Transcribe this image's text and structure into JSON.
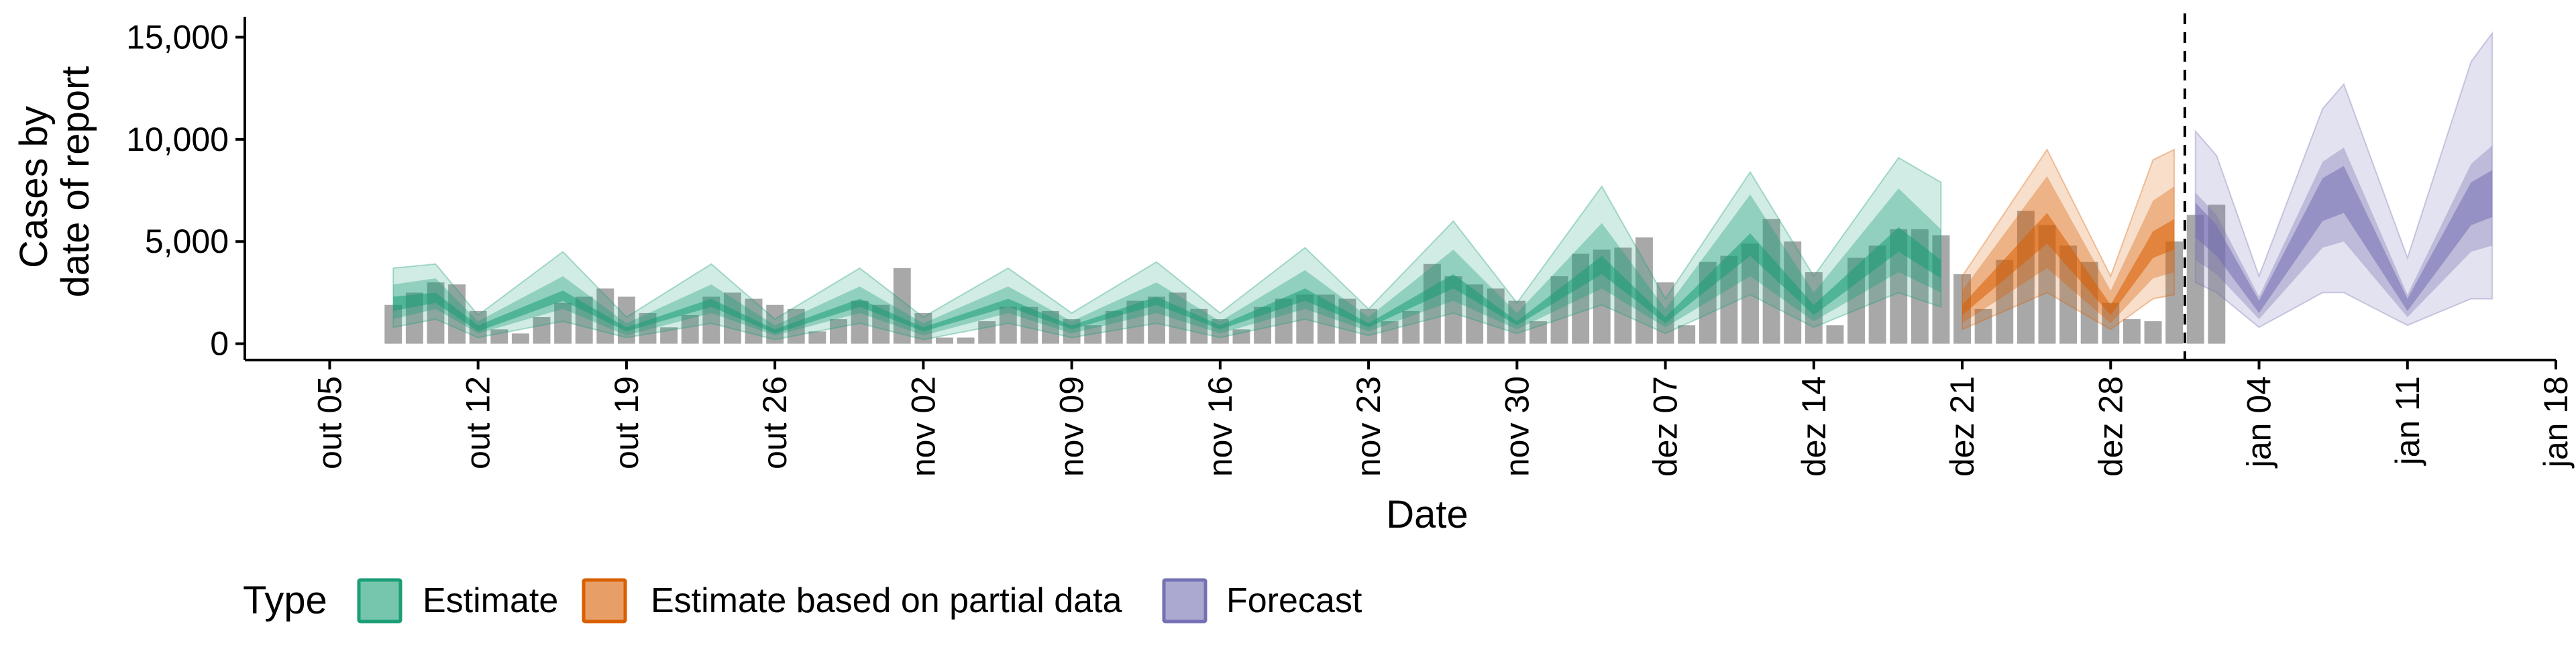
{
  "colors": {
    "estimate": "#1b9e77",
    "partial": "#d95f02",
    "forecast": "#7570b3",
    "bars": "#a8a8a8",
    "vline": "#000000"
  },
  "legend": {
    "title": "Type",
    "items": [
      {
        "label": "Estimate",
        "color": "#1b9e77"
      },
      {
        "label": "Estimate based on partial data",
        "color": "#d95f02"
      },
      {
        "label": "Forecast",
        "color": "#7570b3"
      }
    ]
  },
  "chart_data": {
    "type": "area",
    "title": "",
    "xlabel": "Date",
    "ylabel_lines": [
      "Cases by",
      "date of report"
    ],
    "ylim": [
      -800,
      16000
    ],
    "yticks": [
      0,
      5000,
      10000,
      15000
    ],
    "ytick_labels": [
      "0",
      "5,000",
      "10,000",
      "15,000"
    ],
    "xlim": [
      "2020-10-01",
      "2021-01-18"
    ],
    "xticks": [
      "2020-10-05",
      "2020-10-12",
      "2020-10-19",
      "2020-10-26",
      "2020-11-02",
      "2020-11-09",
      "2020-11-16",
      "2020-11-23",
      "2020-11-30",
      "2020-12-07",
      "2020-12-14",
      "2020-12-21",
      "2020-12-28",
      "2021-01-04",
      "2021-01-11",
      "2021-01-18"
    ],
    "xtick_labels": [
      "out 05",
      "out 12",
      "out 19",
      "out 26",
      "nov 02",
      "nov 09",
      "nov 16",
      "nov 23",
      "nov 30",
      "dez 07",
      "dez 14",
      "dez 21",
      "dez 28",
      "jan 04",
      "jan 11",
      "jan 18"
    ],
    "forecast_start": "2020-12-31",
    "reported_cases": {
      "start_date": "2020-10-08",
      "values": [
        1900,
        2500,
        3000,
        2900,
        1600,
        700,
        500,
        1300,
        2000,
        2300,
        2700,
        2300,
        1500,
        800,
        1400,
        2300,
        2500,
        2200,
        1900,
        1700,
        600,
        1200,
        2100,
        1900,
        3700,
        1500,
        300,
        300,
        1100,
        1800,
        1800,
        1600,
        1200,
        900,
        1600,
        2100,
        2300,
        2500,
        1700,
        1200,
        700,
        1800,
        2200,
        2400,
        2400,
        2200,
        1700,
        1100,
        1600,
        3900,
        3300,
        2900,
        2700,
        2100,
        1100,
        3300,
        4400,
        4600,
        4700,
        5200,
        3000,
        900,
        4000,
        4300,
        4900,
        6100,
        5000,
        3500,
        900,
        4200,
        4800,
        5600,
        5600,
        5300,
        3400,
        1700,
        4100,
        6500,
        5800,
        4800,
        4000,
        2000,
        1200,
        1100,
        5000,
        6300,
        6800
      ]
    },
    "series": [
      {
        "name": "Estimate",
        "dates": [
          "2020-10-08",
          "2020-10-10",
          "2020-10-12",
          "2020-10-16",
          "2020-10-19",
          "2020-10-23",
          "2020-10-26",
          "2020-10-30",
          "2020-11-02",
          "2020-11-06",
          "2020-11-09",
          "2020-11-13",
          "2020-11-16",
          "2020-11-20",
          "2020-11-23",
          "2020-11-27",
          "2020-11-30",
          "2020-12-04",
          "2020-12-07",
          "2020-12-11",
          "2020-12-14",
          "2020-12-18",
          "2020-12-20"
        ],
        "median": [
          1900,
          2200,
          700,
          2300,
          700,
          2000,
          600,
          2000,
          700,
          2000,
          800,
          2100,
          800,
          2400,
          900,
          3000,
          1000,
          3800,
          1100,
          4800,
          1600,
          5000,
          3600
        ],
        "band_50": [
          [
            1600,
            2300
          ],
          [
            2000,
            2500
          ],
          [
            600,
            900
          ],
          [
            2100,
            2600
          ],
          [
            600,
            800
          ],
          [
            1800,
            2200
          ],
          [
            500,
            700
          ],
          [
            1800,
            2200
          ],
          [
            600,
            800
          ],
          [
            1800,
            2200
          ],
          [
            700,
            900
          ],
          [
            1900,
            2300
          ],
          [
            700,
            900
          ],
          [
            2100,
            2700
          ],
          [
            800,
            1000
          ],
          [
            2700,
            3400
          ],
          [
            900,
            1100
          ],
          [
            3400,
            4300
          ],
          [
            1000,
            1300
          ],
          [
            4300,
            5400
          ],
          [
            1400,
            1900
          ],
          [
            4500,
            5700
          ],
          [
            3200,
            4100
          ]
        ],
        "band_90": [
          [
            1200,
            2900
          ],
          [
            1700,
            3200
          ],
          [
            500,
            1100
          ],
          [
            1700,
            3300
          ],
          [
            400,
            1000
          ],
          [
            1500,
            2900
          ],
          [
            400,
            900
          ],
          [
            1500,
            2800
          ],
          [
            400,
            1000
          ],
          [
            1500,
            2800
          ],
          [
            500,
            1100
          ],
          [
            1500,
            3000
          ],
          [
            500,
            1100
          ],
          [
            1700,
            3600
          ],
          [
            600,
            1300
          ],
          [
            2100,
            4600
          ],
          [
            700,
            1500
          ],
          [
            2700,
            5900
          ],
          [
            800,
            1700
          ],
          [
            3300,
            7300
          ],
          [
            1100,
            2500
          ],
          [
            3500,
            7600
          ],
          [
            2500,
            5600
          ]
        ],
        "band_outer": [
          [
            800,
            3700
          ],
          [
            1200,
            3900
          ],
          [
            300,
            1400
          ],
          [
            1100,
            4500
          ],
          [
            300,
            1300
          ],
          [
            1000,
            3900
          ],
          [
            200,
            1200
          ],
          [
            1000,
            3700
          ],
          [
            200,
            1300
          ],
          [
            1000,
            3700
          ],
          [
            300,
            1500
          ],
          [
            1000,
            4000
          ],
          [
            300,
            1500
          ],
          [
            1200,
            4700
          ],
          [
            400,
            1700
          ],
          [
            1500,
            6000
          ],
          [
            500,
            2000
          ],
          [
            1900,
            7700
          ],
          [
            500,
            2200
          ],
          [
            2400,
            8400
          ],
          [
            800,
            3300
          ],
          [
            2500,
            9100
          ],
          [
            1800,
            7900
          ]
        ]
      },
      {
        "name": "Estimate based on partial data",
        "dates": [
          "2020-12-21",
          "2020-12-25",
          "2020-12-28",
          "2020-12-30",
          "2020-12-31"
        ],
        "median": [
          1600,
          5600,
          1600,
          4800,
          5300
        ],
        "band_50": [
          [
            1400,
            1900
          ],
          [
            4900,
            6400
          ],
          [
            1400,
            1900
          ],
          [
            4200,
            5500
          ],
          [
            4600,
            6100
          ]
        ],
        "band_90": [
          [
            1000,
            2600
          ],
          [
            3700,
            8200
          ],
          [
            1000,
            2600
          ],
          [
            3200,
            7000
          ],
          [
            3500,
            7700
          ]
        ],
        "band_outer": [
          [
            700,
            3300
          ],
          [
            2500,
            9500
          ],
          [
            700,
            3300
          ],
          [
            2200,
            9000
          ],
          [
            2400,
            9500
          ]
        ]
      },
      {
        "name": "Forecast",
        "dates": [
          "2021-01-01",
          "2021-01-02",
          "2021-01-04",
          "2021-01-07",
          "2021-01-08",
          "2021-01-11",
          "2021-01-14",
          "2021-01-15"
        ],
        "median": [
          6000,
          5000,
          1800,
          7000,
          7500,
          1900,
          6800,
          7300
        ],
        "band_50": [
          [
            5200,
            6900
          ],
          [
            4300,
            5800
          ],
          [
            1500,
            2100
          ],
          [
            6000,
            8100
          ],
          [
            6400,
            8700
          ],
          [
            1600,
            2200
          ],
          [
            5800,
            7900
          ],
          [
            6200,
            8500
          ]
        ],
        "band_90": [
          [
            4100,
            7400
          ],
          [
            3400,
            6300
          ],
          [
            1200,
            2300
          ],
          [
            4700,
            8900
          ],
          [
            5000,
            9600
          ],
          [
            1300,
            2400
          ],
          [
            4500,
            8800
          ],
          [
            4800,
            9700
          ]
        ],
        "band_outer": [
          [
            3000,
            10400
          ],
          [
            2500,
            9200
          ],
          [
            800,
            3300
          ],
          [
            2500,
            11500
          ],
          [
            2500,
            12700
          ],
          [
            900,
            4200
          ],
          [
            2200,
            13800
          ],
          [
            2200,
            15200
          ]
        ]
      }
    ]
  }
}
